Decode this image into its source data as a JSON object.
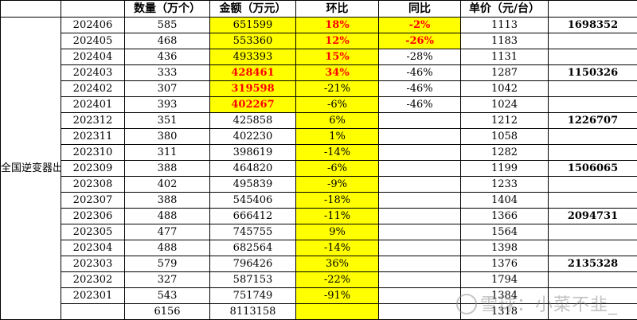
{
  "header": {
    "blank": "",
    "qty": "数量（万个）",
    "amount": "金额（万元）",
    "mom": "环比",
    "yoy": "同比",
    "unit_price": "单价（元/台）",
    "extra": ""
  },
  "region_label": "全国逆变器出口",
  "rows": [
    {
      "month": "202406",
      "qty": "585",
      "amount": "651599",
      "mom": "18%",
      "yoy": "-2%",
      "price": "1113",
      "extra": "1698352"
    },
    {
      "month": "202405",
      "qty": "468",
      "amount": "553360",
      "mom": "12%",
      "yoy": "-26%",
      "price": "1183",
      "extra": ""
    },
    {
      "month": "202404",
      "qty": "436",
      "amount": "493393",
      "mom": "15%",
      "yoy": "-28%",
      "price": "1131",
      "extra": ""
    },
    {
      "month": "202403",
      "qty": "333",
      "amount": "428461",
      "mom": "34%",
      "yoy": "-46%",
      "price": "1287",
      "extra": "1150326"
    },
    {
      "month": "202402",
      "qty": "307",
      "amount": "319598",
      "mom": "-21%",
      "yoy": "-46%",
      "price": "1042",
      "extra": ""
    },
    {
      "month": "202401",
      "qty": "393",
      "amount": "402267",
      "mom": "-6%",
      "yoy": "-46%",
      "price": "1024",
      "extra": ""
    },
    {
      "month": "202312",
      "qty": "351",
      "amount": "425858",
      "mom": "6%",
      "yoy": "",
      "price": "1212",
      "extra": "1226707"
    },
    {
      "month": "202311",
      "qty": "380",
      "amount": "402230",
      "mom": "1%",
      "yoy": "",
      "price": "1058",
      "extra": ""
    },
    {
      "month": "202310",
      "qty": "311",
      "amount": "398619",
      "mom": "-14%",
      "yoy": "",
      "price": "1282",
      "extra": ""
    },
    {
      "month": "202309",
      "qty": "388",
      "amount": "464820",
      "mom": "-6%",
      "yoy": "",
      "price": "1199",
      "extra": "1506065"
    },
    {
      "month": "202308",
      "qty": "402",
      "amount": "495839",
      "mom": "-9%",
      "yoy": "",
      "price": "1233",
      "extra": ""
    },
    {
      "month": "202307",
      "qty": "388",
      "amount": "545406",
      "mom": "-18%",
      "yoy": "",
      "price": "1404",
      "extra": ""
    },
    {
      "month": "202306",
      "qty": "488",
      "amount": "666412",
      "mom": "-11%",
      "yoy": "",
      "price": "1366",
      "extra": "2094731"
    },
    {
      "month": "202305",
      "qty": "477",
      "amount": "745755",
      "mom": "9%",
      "yoy": "",
      "price": "1564",
      "extra": ""
    },
    {
      "month": "202304",
      "qty": "488",
      "amount": "682564",
      "mom": "-14%",
      "yoy": "",
      "price": "1398",
      "extra": ""
    },
    {
      "month": "202303",
      "qty": "579",
      "amount": "796426",
      "mom": "36%",
      "yoy": "",
      "price": "1376",
      "extra": "2135328"
    },
    {
      "month": "202302",
      "qty": "327",
      "amount": "587153",
      "mom": "-22%",
      "yoy": "",
      "price": "1794",
      "extra": ""
    },
    {
      "month": "202301",
      "qty": "543",
      "amount": "751749",
      "mom": "-91%",
      "yoy": "",
      "price": "1384",
      "extra": ""
    }
  ],
  "totals": {
    "month": "",
    "qty": "6156",
    "amount": "8113158",
    "mom": "",
    "yoy": "",
    "price": "1318",
    "extra": ""
  },
  "watermark": "雪球：小菜不韭_",
  "colors": {
    "highlight": "#ffff00",
    "emphasis": "#ff0000",
    "grid": "#000000"
  }
}
